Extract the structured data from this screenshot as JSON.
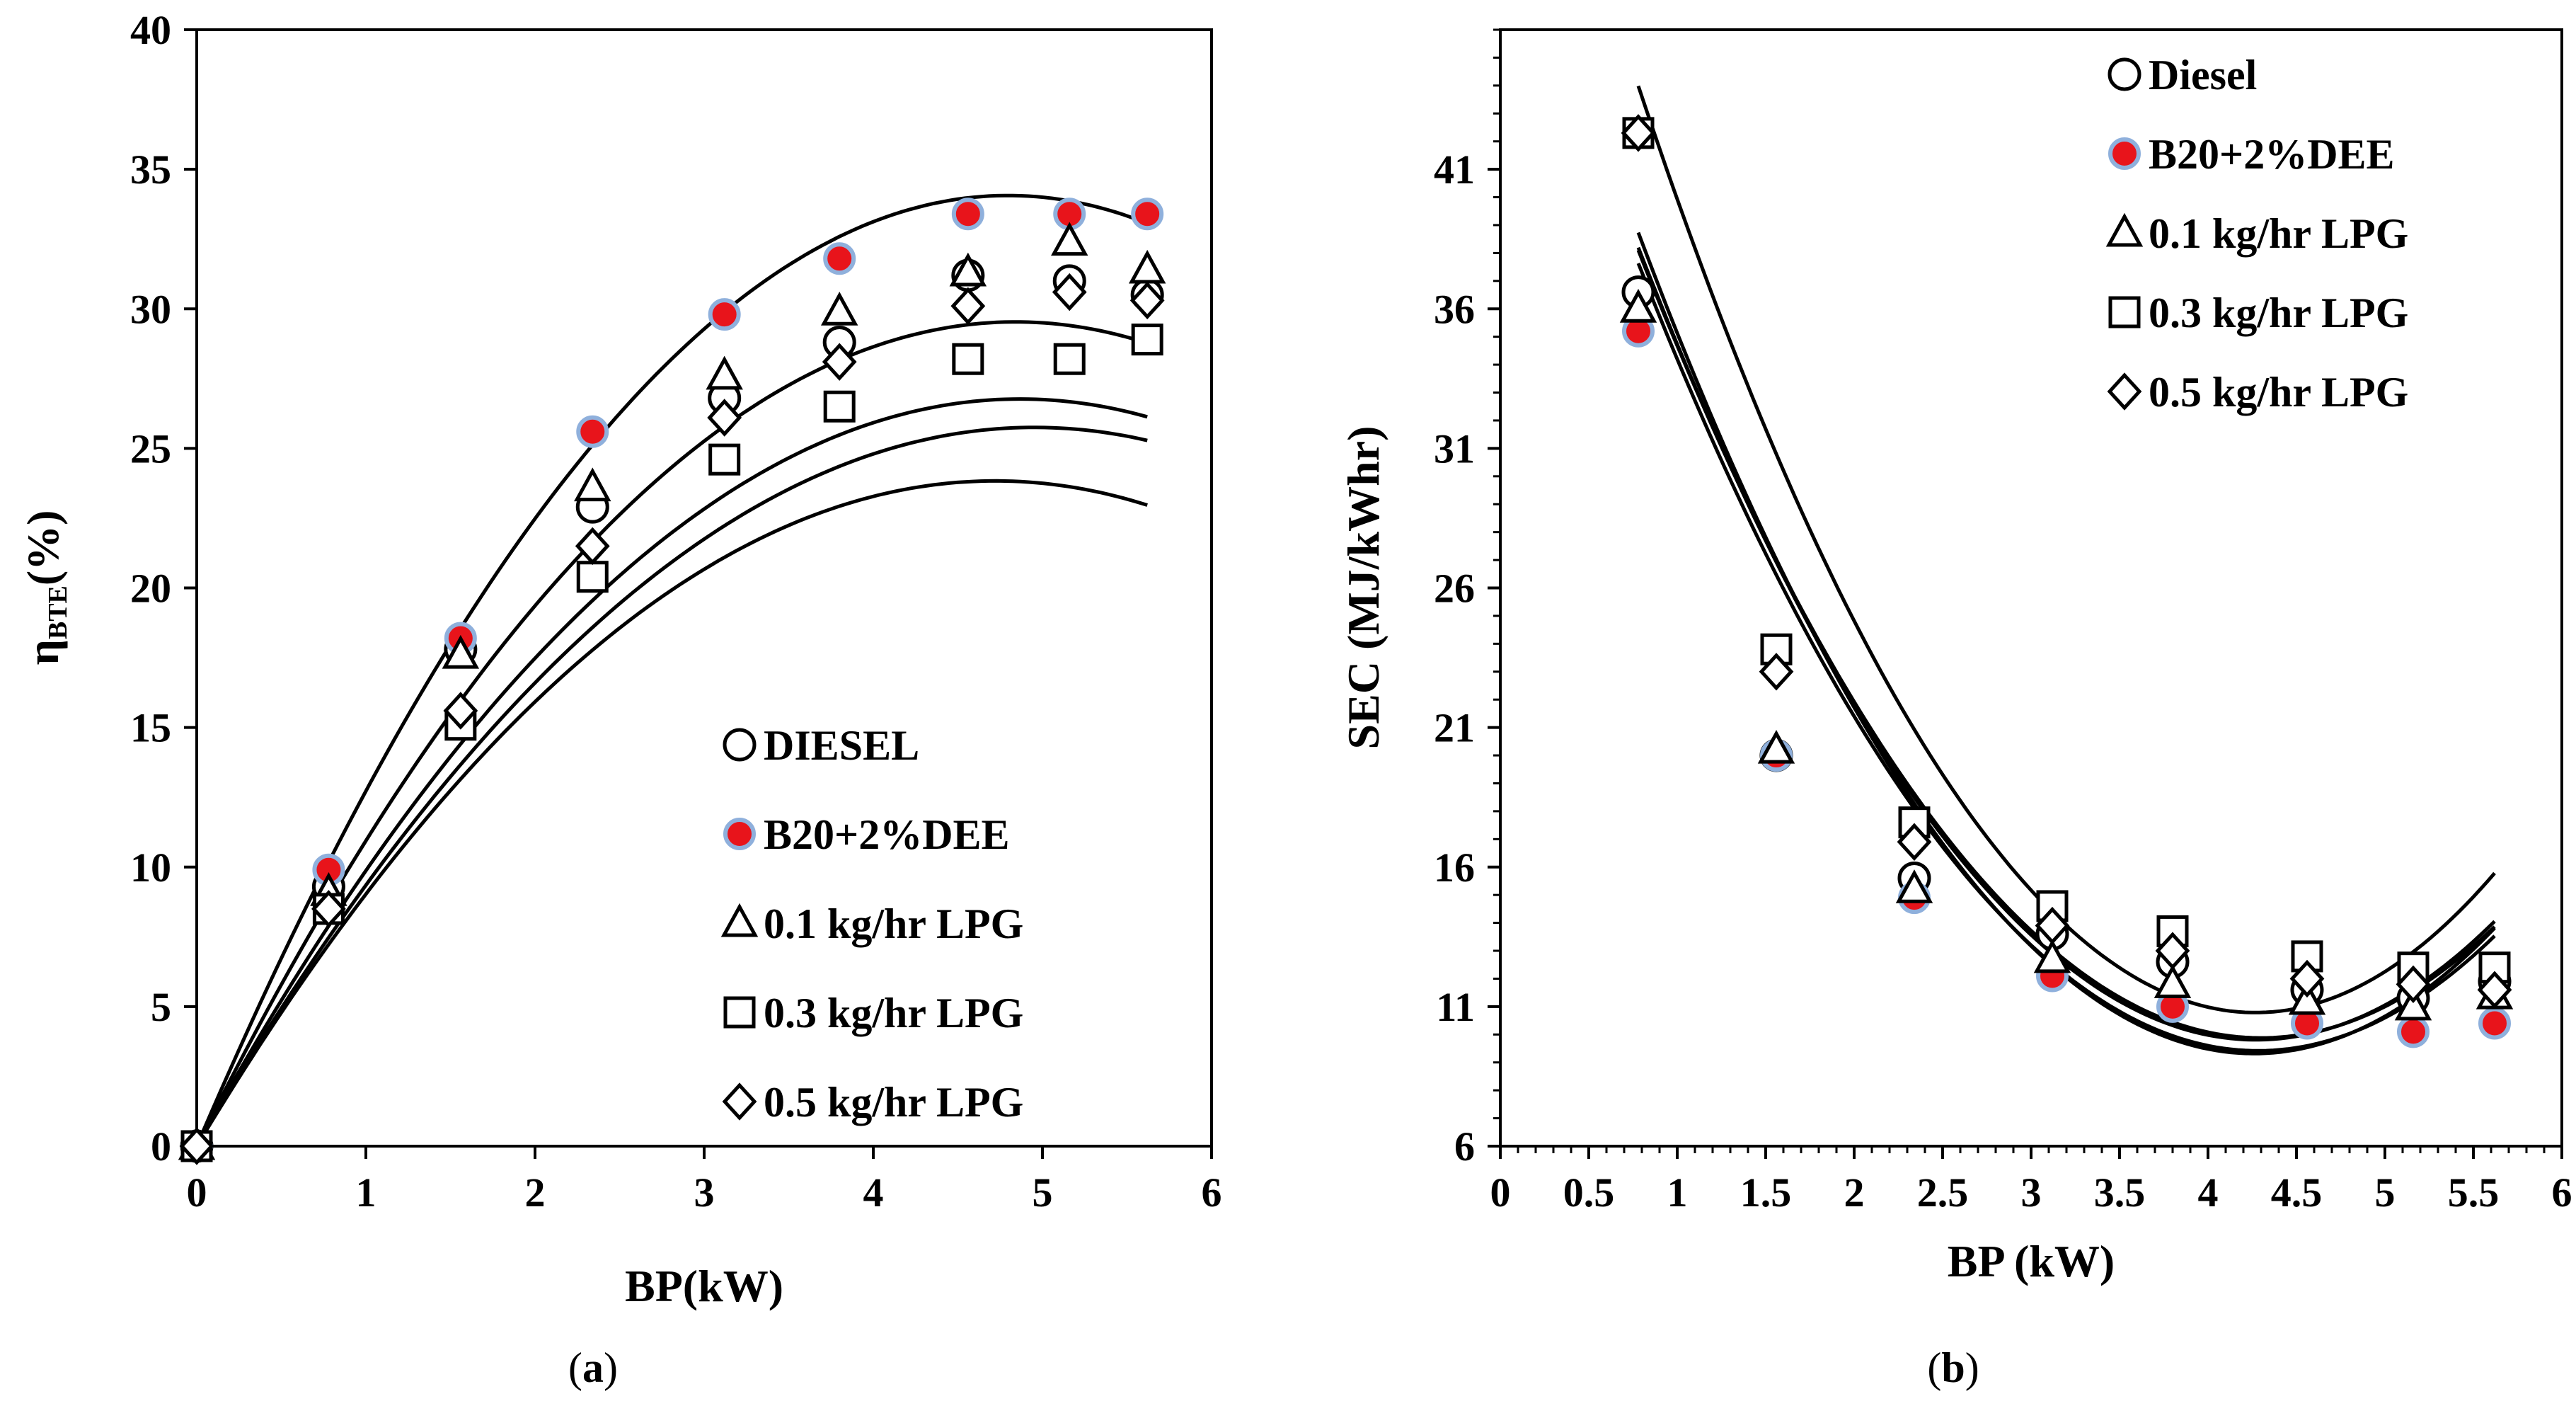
{
  "chart_data": [
    {
      "type": "scatter",
      "panel_label": "a",
      "title": "",
      "xlabel": "BP(kW)",
      "ylabel_main": "η",
      "ylabel_sub": "BTE",
      "ylabel_unit": "(%)",
      "xlim": [
        0,
        6
      ],
      "ylim": [
        0,
        40
      ],
      "xticks": [
        "0",
        "1",
        "2",
        "3",
        "4",
        "5",
        "6"
      ],
      "yticks": [
        "0",
        "5",
        "10",
        "15",
        "20",
        "25",
        "30",
        "35",
        "40"
      ],
      "legend_position": "lower-right",
      "x": [
        0,
        0.78,
        1.56,
        2.34,
        3.12,
        3.8,
        4.56,
        5.16,
        5.62
      ],
      "series": [
        {
          "name": "DIESEL",
          "marker": "circle",
          "values": [
            0,
            9.3,
            17.8,
            22.9,
            26.8,
            28.8,
            31.2,
            31.0,
            30.5
          ],
          "fit": [
            -1.07,
            10.1,
            0
          ]
        },
        {
          "name": "B20+2%DEE",
          "marker": "filled-circle",
          "values": [
            0,
            9.9,
            18.2,
            25.6,
            29.8,
            31.8,
            33.4,
            33.4,
            33.4
          ],
          "fit": [
            -1.48,
            14.2,
            0
          ]
        },
        {
          "name": "0.1 kg/hr LPG",
          "marker": "triangle",
          "values": [
            0,
            9.1,
            17.6,
            23.6,
            27.6,
            29.9,
            31.3,
            32.4,
            31.4
          ],
          "fit": [
            -1.26,
            12.2,
            0
          ]
        },
        {
          "name": "0.3 kg/hr LPG",
          "marker": "square",
          "values": [
            0,
            8.5,
            15.1,
            20.4,
            24.6,
            26.5,
            28.2,
            28.2,
            28.9
          ],
          "fit": [
            -1.05,
            10.4,
            0
          ]
        },
        {
          "name": "0.5 kg/hr LPG",
          "marker": "diamond",
          "values": [
            0,
            8.5,
            15.6,
            21.5,
            26.1,
            28.1,
            30.1,
            30.6,
            30.3
          ],
          "fit": [
            -1.13,
            11.0,
            0
          ]
        }
      ]
    },
    {
      "type": "scatter",
      "panel_label": "b",
      "title": "",
      "xlabel": "BP (kW)",
      "ylabel": "SEC (MJ/kWhr)",
      "xlim": [
        0,
        6
      ],
      "ylim": [
        6,
        46
      ],
      "xticks": [
        "0",
        "0.5",
        "1",
        "1.5",
        "2",
        "2.5",
        "3",
        "3.5",
        "4",
        "4.5",
        "5",
        "5.5",
        "6"
      ],
      "yticks": [
        "6",
        "11",
        "16",
        "21",
        "26",
        "31",
        "36",
        "41"
      ],
      "legend_position": "top-right",
      "x": [
        0.78,
        1.56,
        2.34,
        3.12,
        3.8,
        4.56,
        5.16,
        5.62
      ],
      "series": [
        {
          "name": "Diesel",
          "marker": "circle",
          "values": [
            36.6,
            20.0,
            15.6,
            13.6,
            12.6,
            11.6,
            11.3,
            11.9
          ],
          "fit": [
            2.28,
            -19.6,
            52.0
          ]
        },
        {
          "name": "B20+2%DEE",
          "marker": "filled-circle",
          "values": [
            35.2,
            20.0,
            14.9,
            12.1,
            11.0,
            10.4,
            10.1,
            10.4
          ],
          "fit": [
            2.43,
            -20.7,
            53.4
          ]
        },
        {
          "name": "0.1 kg/hr LPG",
          "marker": "triangle",
          "values": [
            36.0,
            20.2,
            15.2,
            12.7,
            11.8,
            11.2,
            11.0,
            11.4
          ],
          "fit": [
            2.3,
            -19.7,
            51.6
          ]
        },
        {
          "name": "0.3 kg/hr LPG",
          "marker": "square",
          "values": [
            42.3,
            23.8,
            17.6,
            14.6,
            13.7,
            12.8,
            12.4,
            12.4
          ],
          "fit": [
            2.73,
            -23.3,
            60.5
          ]
        },
        {
          "name": "0.5 kg/hr LPG",
          "marker": "diamond",
          "values": [
            42.3,
            23.0,
            16.9,
            13.9,
            13.0,
            12.0,
            11.8,
            11.6
          ],
          "fit": [
            2.33,
            -19.9,
            52.3
          ]
        }
      ]
    }
  ]
}
